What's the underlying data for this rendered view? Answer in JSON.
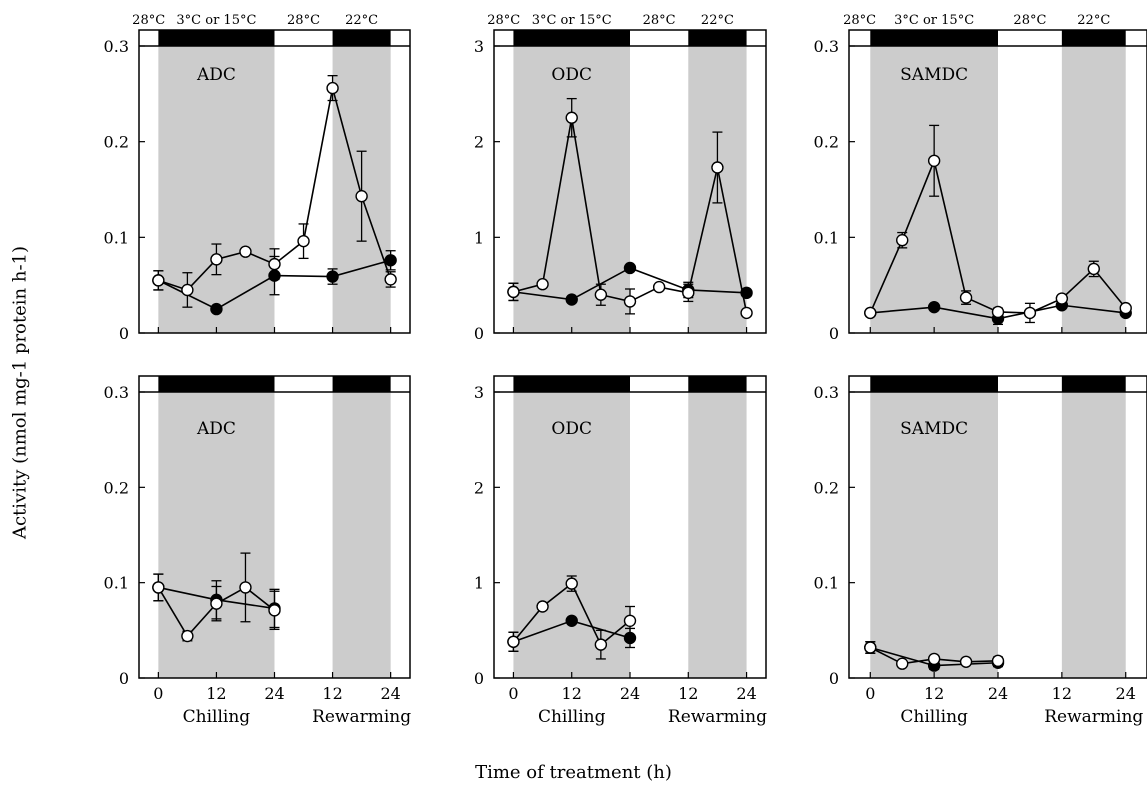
{
  "y_axis_label": "Activity (nmol mg-1 protein h-1)",
  "x_axis_label": "Time of treatment (h)",
  "x_tick_labels": [
    "0",
    "12",
    "24",
    "12",
    "24"
  ],
  "x_group_labels": [
    "Chilling",
    "Rewarming"
  ],
  "temperature_labels": [
    "28°C",
    "3°C or 15°C",
    "28°C",
    "22°C"
  ],
  "series_colors": {
    "open": "#ffffff",
    "filled": "#000000",
    "shaded_band": "#cccccc"
  },
  "chart_data": [
    {
      "type": "line",
      "title": "ADC",
      "row": "top",
      "ylim": [
        0,
        0.3
      ],
      "yticks": [
        "0",
        "0.1",
        "0.2",
        "0.3"
      ],
      "shaded_periods": [
        "Chilling",
        "Rewarming 22°C"
      ],
      "series": [
        {
          "marker": "open",
          "x": [
            0,
            6,
            12,
            18,
            24,
            30,
            36,
            42,
            48
          ],
          "y": [
            0.055,
            0.045,
            0.077,
            0.085,
            0.072,
            0.096,
            0.256,
            0.143,
            0.056
          ],
          "err": [
            0.01,
            0.018,
            0.016,
            0,
            0.016,
            0.018,
            0.013,
            0.047,
            0.008
          ]
        },
        {
          "marker": "filled",
          "x": [
            0,
            12,
            24,
            36,
            48
          ],
          "y": [
            0.055,
            0.025,
            0.06,
            0.059,
            0.076
          ],
          "err": [
            0.01,
            0,
            0.02,
            0.008,
            0.01
          ]
        }
      ]
    },
    {
      "type": "line",
      "title": "ODC",
      "row": "top",
      "ylim": [
        0,
        3
      ],
      "yticks": [
        "0",
        "1",
        "2",
        "3"
      ],
      "shaded_periods": [
        "Chilling",
        "Rewarming 22°C"
      ],
      "series": [
        {
          "marker": "open",
          "x": [
            0,
            6,
            12,
            18,
            24,
            30,
            36,
            42,
            48
          ],
          "y": [
            0.43,
            0.51,
            2.25,
            0.4,
            0.33,
            0.48,
            0.42,
            1.73,
            0.21
          ],
          "err": [
            0.09,
            0,
            0.2,
            0.11,
            0.13,
            0,
            0.09,
            0.37,
            0
          ]
        },
        {
          "marker": "filled",
          "x": [
            0,
            12,
            24,
            36,
            48
          ],
          "y": [
            0.43,
            0.35,
            0.68,
            0.45,
            0.42
          ],
          "err": [
            0.09,
            0,
            0,
            0.08,
            0
          ]
        }
      ]
    },
    {
      "type": "line",
      "title": "SAMDC",
      "row": "top",
      "ylim": [
        0,
        0.3
      ],
      "yticks": [
        "0",
        "0.1",
        "0.2",
        "0.3"
      ],
      "shaded_periods": [
        "Chilling",
        "Rewarming 22°C"
      ],
      "series": [
        {
          "marker": "open",
          "x": [
            0,
            6,
            12,
            18,
            24,
            30,
            36,
            42,
            48
          ],
          "y": [
            0.021,
            0.097,
            0.18,
            0.037,
            0.022,
            0.021,
            0.036,
            0.067,
            0.026
          ],
          "err": [
            0,
            0.008,
            0.037,
            0.007,
            0.004,
            0.01,
            0,
            0.008,
            0
          ]
        },
        {
          "marker": "filled",
          "x": [
            0,
            12,
            24,
            36,
            48
          ],
          "y": [
            0.021,
            0.027,
            0.015,
            0.029,
            0.021
          ],
          "err": [
            0,
            0,
            0.006,
            0,
            0
          ]
        }
      ]
    },
    {
      "type": "line",
      "title": "ADC",
      "row": "bottom",
      "ylim": [
        0,
        0.3
      ],
      "yticks": [
        "0",
        "0.1",
        "0.2",
        "0.3"
      ],
      "shaded_periods": [
        "Chilling",
        "Rewarming 22°C"
      ],
      "series": [
        {
          "marker": "open",
          "x": [
            0,
            6,
            12,
            18,
            24
          ],
          "y": [
            0.095,
            0.044,
            0.078,
            0.095,
            0.071
          ],
          "err": [
            0.014,
            0.005,
            0.018,
            0.036,
            0.02
          ]
        },
        {
          "marker": "filled",
          "x": [
            0,
            12,
            24
          ],
          "y": [
            0.095,
            0.082,
            0.073
          ],
          "err": [
            0.014,
            0.02,
            0.02
          ]
        }
      ]
    },
    {
      "type": "line",
      "title": "ODC",
      "row": "bottom",
      "ylim": [
        0,
        3
      ],
      "yticks": [
        "0",
        "1",
        "2",
        "3"
      ],
      "shaded_periods": [
        "Chilling",
        "Rewarming 22°C"
      ],
      "series": [
        {
          "marker": "open",
          "x": [
            0,
            6,
            12,
            18,
            24
          ],
          "y": [
            0.38,
            0.75,
            0.99,
            0.35,
            0.6
          ],
          "err": [
            0.1,
            0,
            0.08,
            0.15,
            0.15
          ]
        },
        {
          "marker": "filled",
          "x": [
            0,
            12,
            24
          ],
          "y": [
            0.38,
            0.6,
            0.42
          ],
          "err": [
            0.1,
            0,
            0.1
          ]
        }
      ]
    },
    {
      "type": "line",
      "title": "SAMDC",
      "row": "bottom",
      "ylim": [
        0,
        0.3
      ],
      "yticks": [
        "0",
        "0.1",
        "0.2",
        "0.3"
      ],
      "shaded_periods": [
        "Chilling",
        "Rewarming 22°C"
      ],
      "series": [
        {
          "marker": "open",
          "x": [
            0,
            6,
            12,
            18,
            24
          ],
          "y": [
            0.032,
            0.015,
            0.02,
            0.017,
            0.018
          ],
          "err": [
            0.006,
            0,
            0.003,
            0,
            0.004
          ]
        },
        {
          "marker": "filled",
          "x": [
            0,
            12,
            24
          ],
          "y": [
            0.032,
            0.013,
            0.016
          ],
          "err": [
            0.006,
            0.004,
            0.004
          ]
        }
      ]
    }
  ]
}
